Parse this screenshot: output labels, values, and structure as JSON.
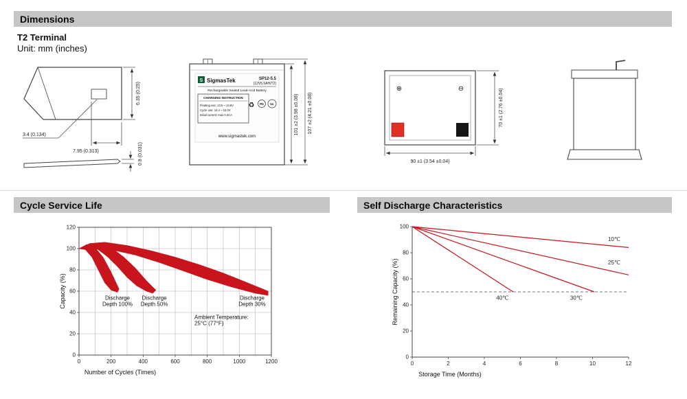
{
  "sections": {
    "dimensions": "Dimensions",
    "cycle_life": "Cycle Service Life",
    "self_discharge": "Self Discharge Characteristics"
  },
  "dimensions_block": {
    "terminal_type": "T2 Terminal",
    "unit": "Unit: mm (inches)",
    "terminal": {
      "height": "6.35 (0.25)",
      "hole": "3.4 (0.134)",
      "length": "7.95 (0.313)",
      "thickness": "0.8 (0.031)"
    },
    "front_view": {
      "logo_letter": "S",
      "brand": "SigmasTek",
      "model": "SP12-5.5",
      "spec": "(12V5.5AH/T2)",
      "battery_type": "Rechargeable Sealed Lead-Acid Battery",
      "charging_title": "CHARGING INSTRUCTION",
      "charging_line1": "Floating use: 13.5 ~ 13.8V",
      "charging_line2": "Cycle use: 14.4 ~ 15.0V",
      "charging_line3": "Initial current: max 0.3CA",
      "recycle_symbol": "♻",
      "pb_mark": "Pb",
      "ul_mark": "UL",
      "website": "www.sigmastek.com",
      "height_case": "101 ±2 (3.98 ±0.08)",
      "height_total": "107 ±2 (4.21 ±0.08)"
    },
    "top_view": {
      "plus": "⊕",
      "minus": "⊖",
      "depth": "70 ±1 (2.76 ±0.04)",
      "width": "90 ±1 (3.54 ±0.04)",
      "positive_terminal_color": "#e03127",
      "negative_terminal_color": "#151515"
    }
  },
  "chart_data": [
    {
      "type": "area",
      "title": "Cycle Service Life",
      "xlabel": "Number of Cycles (Times)",
      "ylabel": "Capacity (%)",
      "xlim": [
        0,
        1200
      ],
      "ylim": [
        0,
        120
      ],
      "xticks": [
        0,
        200,
        400,
        600,
        800,
        1000,
        1200
      ],
      "yticks": [
        0,
        20,
        40,
        60,
        80,
        100,
        120
      ],
      "grid": {
        "x": 100,
        "y": 20
      },
      "frame": "box",
      "accent": "#c8141c",
      "bands": [
        {
          "name": "Discharge Depth 100%",
          "points": [
            [
              0,
              100
            ],
            [
              50,
              104
            ],
            [
              100,
              101
            ],
            [
              150,
              92
            ],
            [
              200,
              78
            ],
            [
              250,
              62
            ],
            [
              240,
              59
            ],
            [
              200,
              61
            ],
            [
              160,
              68
            ],
            [
              120,
              80
            ],
            [
              80,
              92
            ],
            [
              40,
              99
            ]
          ]
        },
        {
          "name": "Discharge Depth 50%",
          "points": [
            [
              0,
              100
            ],
            [
              70,
              105
            ],
            [
              140,
              105
            ],
            [
              210,
              100
            ],
            [
              280,
              92
            ],
            [
              350,
              82
            ],
            [
              420,
              70
            ],
            [
              480,
              61
            ],
            [
              460,
              58
            ],
            [
              420,
              60
            ],
            [
              360,
              65
            ],
            [
              300,
              73
            ],
            [
              240,
              83
            ],
            [
              180,
              92
            ],
            [
              120,
              99
            ],
            [
              60,
              102
            ]
          ]
        },
        {
          "name": "Discharge Depth 30%",
          "points": [
            [
              0,
              100
            ],
            [
              80,
              105
            ],
            [
              160,
              106
            ],
            [
              300,
              103
            ],
            [
              450,
              98
            ],
            [
              600,
              92
            ],
            [
              750,
              85
            ],
            [
              900,
              77
            ],
            [
              1050,
              68
            ],
            [
              1180,
              60
            ],
            [
              1180,
              56
            ],
            [
              1100,
              58
            ],
            [
              950,
              64
            ],
            [
              800,
              71
            ],
            [
              650,
              79
            ],
            [
              500,
              87
            ],
            [
              350,
              94
            ],
            [
              200,
              99
            ],
            [
              100,
              101
            ]
          ]
        }
      ],
      "annotations": [
        {
          "x": 240,
          "y": 52,
          "lines": [
            "Discharge",
            "Depth 100%"
          ]
        },
        {
          "x": 470,
          "y": 52,
          "lines": [
            "Discharge",
            "Depth 50%"
          ]
        },
        {
          "x": 1080,
          "y": 52,
          "lines": [
            "Discharge",
            "Depth 30%"
          ]
        },
        {
          "x": 720,
          "y": 34,
          "anchor": "start",
          "lines": [
            "Ambient Temperature:",
            "25°C (77°F)"
          ]
        }
      ]
    },
    {
      "type": "line",
      "title": "Self Discharge Characteristics",
      "xlabel": "Storage Time (Months)",
      "ylabel": "Remaining Capacity (%)",
      "xlim": [
        0,
        12
      ],
      "ylim": [
        0,
        100
      ],
      "xticks": [
        0,
        2,
        4,
        6,
        8,
        10,
        12
      ],
      "yticks": [
        0,
        20,
        40,
        60,
        80,
        100
      ],
      "frame": "axes",
      "accent": "#c8141c",
      "dashed_y": 50,
      "lines": [
        {
          "name": "10℃",
          "points": [
            [
              0,
              100
            ],
            [
              12,
              84
            ]
          ],
          "label_at": [
            11.2,
            89
          ]
        },
        {
          "name": "25℃",
          "points": [
            [
              0,
              100
            ],
            [
              12,
              63
            ]
          ],
          "label_at": [
            11.2,
            71
          ]
        },
        {
          "name": "30℃",
          "points": [
            [
              0,
              100
            ],
            [
              10.1,
              50
            ]
          ],
          "label_at": [
            9.1,
            44
          ]
        },
        {
          "name": "40℃",
          "points": [
            [
              0,
              100
            ],
            [
              5.6,
              50
            ]
          ],
          "label_at": [
            5.0,
            44
          ]
        }
      ]
    }
  ]
}
